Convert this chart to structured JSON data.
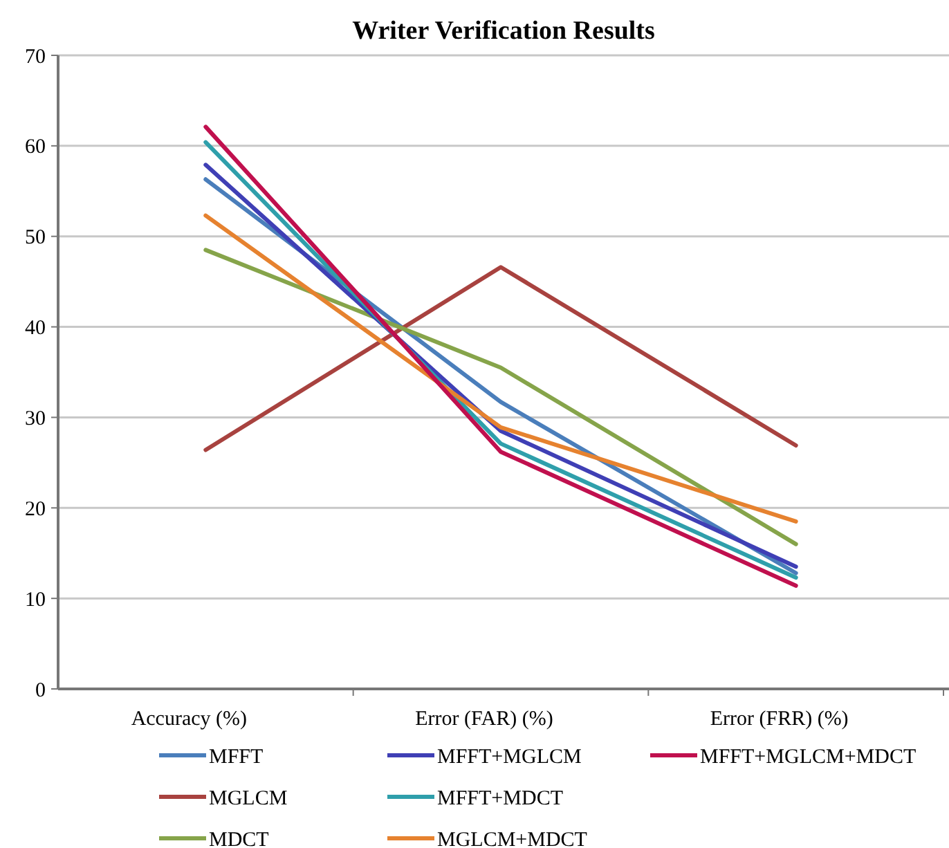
{
  "chart_data": {
    "type": "line",
    "title": "Writer Verification Results",
    "categories": [
      "Accuracy (%)",
      "Error (FAR) (%)",
      "Error (FRR) (%)"
    ],
    "series": [
      {
        "name": "MFFT",
        "color": "#4a7ebb",
        "values": [
          56.3,
          31.7,
          12.8
        ]
      },
      {
        "name": "MGLCM",
        "color": "#a8423f",
        "values": [
          26.4,
          46.6,
          26.9
        ]
      },
      {
        "name": "MDCT",
        "color": "#86a44a",
        "values": [
          48.5,
          35.5,
          16.0
        ]
      },
      {
        "name": "MFFT+MGLCM",
        "color": "#3f3fb5",
        "values": [
          57.9,
          28.5,
          13.5
        ]
      },
      {
        "name": "MFFT+MDCT",
        "color": "#2f9fab",
        "values": [
          60.4,
          27.1,
          12.3
        ]
      },
      {
        "name": "MGLCM+MDCT",
        "color": "#e6822f",
        "values": [
          52.3,
          28.9,
          18.5
        ]
      },
      {
        "name": "MFFT+MGLCM+MDCT",
        "color": "#c0104e",
        "values": [
          62.1,
          26.2,
          11.4
        ]
      }
    ],
    "ylim": [
      0,
      70
    ],
    "yticks": [
      0,
      10,
      20,
      30,
      40,
      50,
      60,
      70
    ],
    "grid": "y",
    "legend": "bottom",
    "marker": "none",
    "line_style": "solid"
  }
}
